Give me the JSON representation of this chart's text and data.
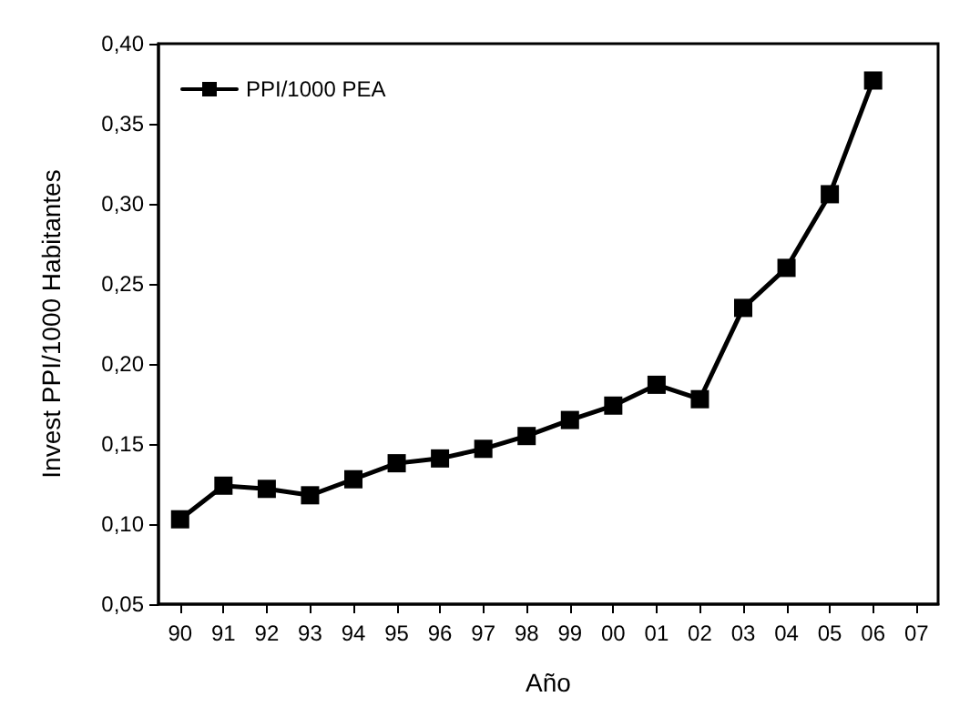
{
  "chart_data": {
    "type": "line",
    "xlabel": "Año",
    "ylabel": "Invest PPI/1000 Habitantes",
    "categories": [
      "90",
      "91",
      "92",
      "93",
      "94",
      "95",
      "96",
      "97",
      "98",
      "99",
      "00",
      "01",
      "02",
      "03",
      "04",
      "05",
      "06",
      "07"
    ],
    "series": [
      {
        "name": "PPI/1000 PEA",
        "color": "#000000",
        "values": [
          0.103,
          0.124,
          0.122,
          0.118,
          0.128,
          0.138,
          0.141,
          0.147,
          0.155,
          0.165,
          0.174,
          0.187,
          0.178,
          0.235,
          0.26,
          0.306,
          0.377,
          null
        ]
      }
    ],
    "ylim": [
      0.05,
      0.4
    ],
    "yticks": [
      {
        "value": 0.05,
        "label": "0,05"
      },
      {
        "value": 0.1,
        "label": "0,10"
      },
      {
        "value": 0.15,
        "label": "0,15"
      },
      {
        "value": 0.2,
        "label": "0,20"
      },
      {
        "value": 0.25,
        "label": "0,25"
      },
      {
        "value": 0.3,
        "label": "0,30"
      },
      {
        "value": 0.35,
        "label": "0,35"
      },
      {
        "value": 0.4,
        "label": "0,40"
      }
    ],
    "grid": false,
    "legend": "top left",
    "marker": "square",
    "line_style": "solid"
  }
}
